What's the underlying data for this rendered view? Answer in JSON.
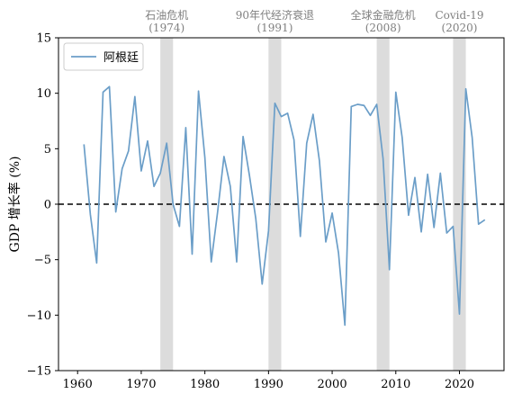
{
  "chart_data": {
    "type": "line",
    "title": "",
    "xlabel": "",
    "ylabel": "GDP 增长率 (%)",
    "xlim": [
      1957,
      2027
    ],
    "ylim": [
      -15,
      15
    ],
    "x_ticks": [
      1960,
      1970,
      1980,
      1990,
      2000,
      2010,
      2020
    ],
    "y_ticks": [
      -15,
      -10,
      -5,
      0,
      5,
      10,
      15
    ],
    "y_tick_labels": [
      "−15",
      "−10",
      "−5",
      "0",
      "5",
      "10",
      "15"
    ],
    "grid": false,
    "legend_position": "top-left",
    "reference_line": {
      "y": 0,
      "style": "dashed",
      "color": "#000000"
    },
    "series": [
      {
        "name": "阿根廷",
        "color": "#6b9ec8",
        "x": [
          1961,
          1962,
          1963,
          1964,
          1965,
          1966,
          1967,
          1968,
          1969,
          1970,
          1971,
          1972,
          1973,
          1974,
          1975,
          1976,
          1977,
          1978,
          1979,
          1980,
          1981,
          1982,
          1983,
          1984,
          1985,
          1986,
          1987,
          1988,
          1989,
          1990,
          1991,
          1992,
          1993,
          1994,
          1995,
          1996,
          1997,
          1998,
          1999,
          2000,
          2001,
          2002,
          2003,
          2004,
          2005,
          2006,
          2007,
          2008,
          2009,
          2010,
          2011,
          2012,
          2013,
          2014,
          2015,
          2016,
          2017,
          2018,
          2019,
          2020,
          2021,
          2022,
          2023,
          2024
        ],
        "values": [
          5.4,
          -0.9,
          -5.3,
          10.1,
          10.6,
          -0.7,
          3.2,
          4.8,
          9.7,
          3.0,
          5.7,
          1.6,
          2.8,
          5.5,
          0.0,
          -2.0,
          6.9,
          -4.5,
          10.2,
          4.2,
          -5.2,
          -0.7,
          4.3,
          1.6,
          -5.2,
          6.1,
          2.6,
          -1.3,
          -7.2,
          -2.4,
          9.1,
          7.9,
          8.2,
          5.8,
          -2.9,
          5.5,
          8.1,
          3.9,
          -3.4,
          -0.8,
          -4.4,
          -10.9,
          8.8,
          9.0,
          8.9,
          8.0,
          9.0,
          4.1,
          -5.9,
          10.1,
          6.0,
          -1.0,
          2.4,
          -2.5,
          2.7,
          -2.1,
          2.8,
          -2.6,
          -2.0,
          -9.9,
          10.4,
          6.0,
          -1.8,
          -1.4
        ]
      }
    ],
    "shaded_periods": [
      {
        "label": "石油危机",
        "sublabel": "(1974)",
        "start": 1973,
        "end": 1975
      },
      {
        "label": "90年代经济衰退",
        "sublabel": "(1991)",
        "start": 1990,
        "end": 1992
      },
      {
        "label": "全球金融危机",
        "sublabel": "(2008)",
        "start": 2007,
        "end": 2009
      },
      {
        "label": "Covid-19",
        "sublabel": "(2020)",
        "start": 2019,
        "end": 2021
      }
    ],
    "colors": {
      "shade": "#dcdcdc",
      "annotation_text": "#808080",
      "axis": "#000000"
    }
  }
}
